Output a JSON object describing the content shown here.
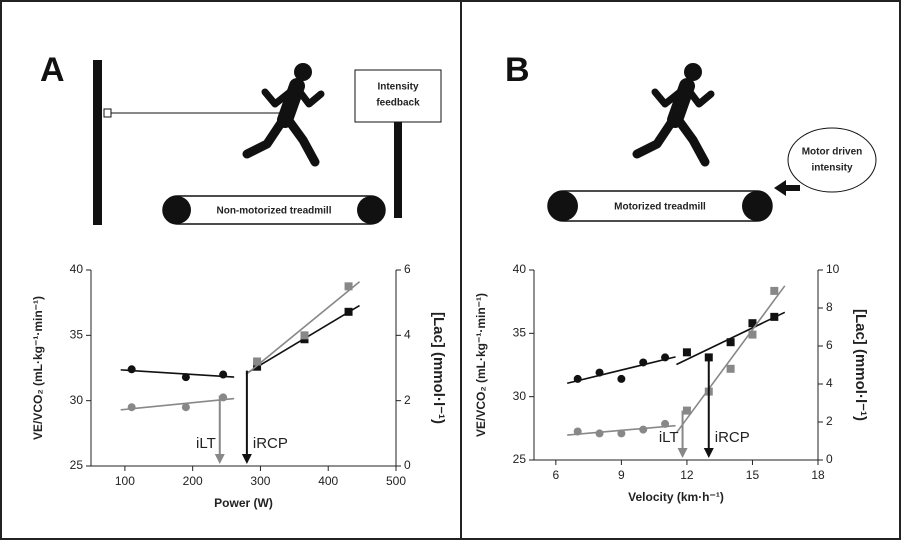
{
  "panels": [
    {
      "label": "A",
      "box_lines": [
        "Intensity",
        "feedback"
      ],
      "treadmill": "Non-motorized treadmill"
    },
    {
      "label": "B",
      "bubble_lines": [
        "Motor driven",
        "intensity"
      ],
      "treadmill": "Motorized treadmill"
    }
  ],
  "chart_data": [
    {
      "type": "scatter",
      "xlabel": "Power (W)",
      "ylabel": "VE/VCO₂ (mL·kg⁻¹·min⁻¹)",
      "y2label": "[Lac] (mmol·l⁻¹)",
      "x": [
        110,
        190,
        245,
        295,
        365,
        430
      ],
      "markers": [
        "circle",
        "circle",
        "circle",
        "square",
        "square",
        "square"
      ],
      "series": [
        {
          "color": "#111111",
          "values": [
            32.4,
            31.8,
            32.0,
            32.6,
            34.7,
            36.8
          ]
        },
        {
          "color": "#888888",
          "axis": "y2",
          "values": [
            1.8,
            1.8,
            2.1,
            3.2,
            4.0,
            5.5
          ]
        }
      ],
      "xlim": [
        50,
        500
      ],
      "xticks": [
        100,
        200,
        300,
        400,
        500
      ],
      "ylim": [
        25,
        40
      ],
      "yticks": [
        25,
        30,
        35,
        40
      ],
      "y2lim": [
        0,
        6
      ],
      "y2ticks": [
        0,
        2,
        4,
        6
      ],
      "annotations": [
        {
          "text": "iLT",
          "x": 240,
          "y": 30.4,
          "color": "#888888"
        },
        {
          "text": "iRCP",
          "x": 280,
          "y": 32.3,
          "color": "#111111"
        }
      ]
    },
    {
      "type": "scatter",
      "xlabel": "Velocity (km·h⁻¹)",
      "ylabel": "VE/VCO₂ (mL·kg⁻¹·min⁻¹)",
      "y2label": "[Lac] (mmol·l⁻¹)",
      "x": [
        7,
        8,
        9,
        10,
        11,
        12,
        13,
        14,
        15,
        16
      ],
      "markers": [
        "circle",
        "circle",
        "circle",
        "circle",
        "circle",
        "square",
        "square",
        "square",
        "square",
        "square"
      ],
      "series": [
        {
          "color": "#111111",
          "values": [
            31.4,
            31.9,
            31.4,
            32.7,
            33.1,
            33.5,
            33.1,
            34.3,
            35.8,
            36.3
          ]
        },
        {
          "color": "#888888",
          "axis": "y2",
          "values": [
            1.5,
            1.4,
            1.4,
            1.6,
            1.9,
            2.6,
            3.6,
            4.8,
            6.6,
            8.9
          ]
        }
      ],
      "xlim": [
        5,
        18
      ],
      "xticks": [
        6,
        9,
        12,
        15,
        18
      ],
      "ylim": [
        25,
        40
      ],
      "yticks": [
        25,
        30,
        35,
        40
      ],
      "y2lim": [
        0,
        10
      ],
      "y2ticks": [
        0,
        2,
        4,
        6,
        8,
        10
      ],
      "annotations": [
        {
          "text": "iLT",
          "x": 11.8,
          "y": 28.9,
          "color": "#888888"
        },
        {
          "text": "iRCP",
          "x": 13,
          "y": 33.1,
          "color": "#111111"
        }
      ]
    }
  ]
}
